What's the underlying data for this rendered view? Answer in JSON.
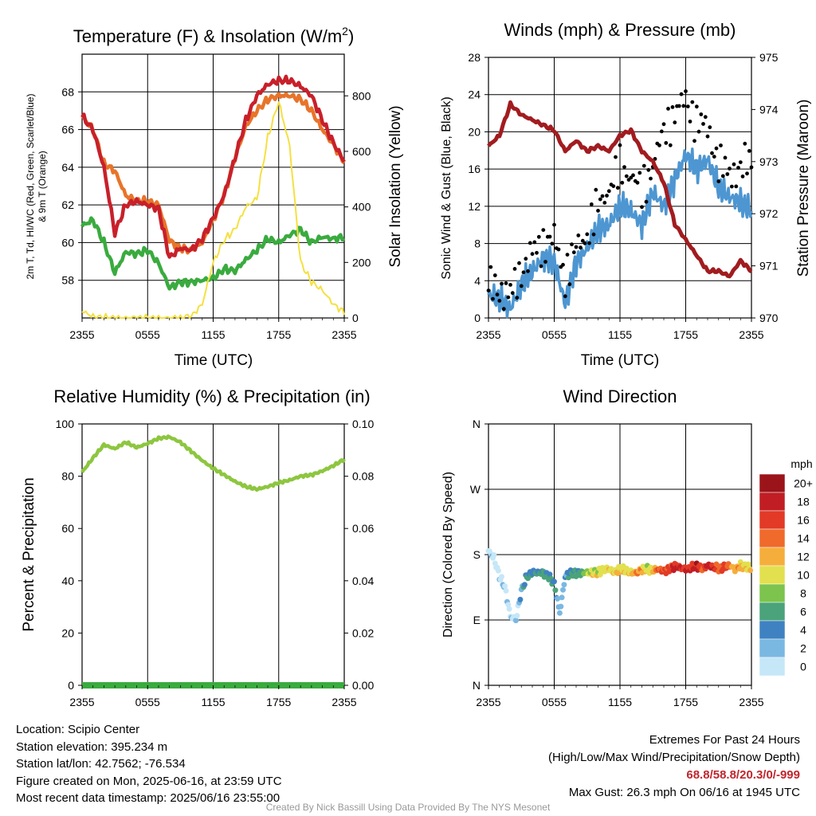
{
  "chart_data": [
    {
      "id": "temp",
      "type": "line",
      "title": "Temperature (F) & Insolation (W/m²)",
      "title_main": "Temperature (F) & Insolation (W/m",
      "title_sup": "2",
      "title_end": ")",
      "xlabel": "Time (UTC)",
      "ylabel_line1": "2m T, Td, HI/WC (Red, Green, Scarlet/Blue)",
      "ylabel_line2": "& 9m T (Orange)",
      "ylabel_right": "Solar Insolation (Yellow)",
      "x_ticks": [
        "2355",
        "0555",
        "1155",
        "1755",
        "2355"
      ],
      "y_ticks": [
        "58",
        "60",
        "62",
        "64",
        "66",
        "68"
      ],
      "y_right_ticks": [
        "0",
        "200",
        "400",
        "600",
        "800"
      ],
      "ylim": [
        56,
        70
      ],
      "y_right_lim": [
        0,
        950
      ],
      "x_hours": [
        0,
        1,
        2,
        3,
        4,
        5,
        6,
        7,
        8,
        9,
        10,
        11,
        12,
        13,
        14,
        15,
        16,
        17,
        18,
        19,
        20,
        21,
        22,
        23,
        24
      ],
      "series": [
        {
          "color": "#e8742a",
          "axis": "left",
          "values": [
            66.7,
            66.0,
            64.2,
            63.8,
            62.5,
            62.2,
            62.2,
            62.0,
            60.1,
            59.7,
            59.6,
            60.0,
            61.2,
            62.5,
            64.5,
            66.2,
            67.0,
            67.6,
            67.8,
            67.8,
            67.6,
            67.0,
            66.0,
            65.2,
            64.3
          ]
        },
        {
          "color": "#c8202a",
          "axis": "left",
          "values": [
            66.7,
            66.0,
            64.0,
            60.5,
            62.0,
            62.2,
            62.0,
            61.8,
            59.2,
            59.7,
            59.6,
            60.2,
            61.3,
            62.5,
            64.5,
            66.5,
            67.8,
            68.4,
            68.6,
            68.6,
            68.3,
            67.8,
            66.5,
            65.3,
            64.3
          ]
        },
        {
          "color": "#3aab3f",
          "axis": "left",
          "values": [
            60.9,
            61.2,
            60.0,
            58.4,
            59.5,
            59.4,
            59.6,
            58.9,
            57.6,
            57.9,
            57.9,
            58.0,
            58.1,
            58.6,
            58.5,
            59.1,
            59.6,
            60.2,
            60.0,
            60.4,
            60.7,
            60.0,
            60.3,
            60.2,
            60.3
          ]
        },
        {
          "color": "#f5e042",
          "axis": "right",
          "values": [
            25,
            5,
            0,
            0,
            0,
            0,
            0,
            0,
            0,
            0,
            5,
            50,
            200,
            280,
            320,
            400,
            430,
            650,
            780,
            620,
            200,
            130,
            100,
            50,
            20
          ]
        }
      ]
    },
    {
      "id": "wind",
      "type": "scatter",
      "title": "Winds (mph) & Pressure (mb)",
      "xlabel": "Time (UTC)",
      "ylabel": "Sonic Wind & Gust (Blue, Black)",
      "ylabel_right": "Station Pressure (Maroon)",
      "x_ticks": [
        "2355",
        "0555",
        "1155",
        "1755",
        "2355"
      ],
      "y_ticks": [
        "0",
        "4",
        "8",
        "12",
        "16",
        "20",
        "24",
        "28"
      ],
      "y_right_ticks": [
        "970",
        "971",
        "972",
        "973",
        "974",
        "975"
      ],
      "ylim": [
        0,
        28
      ],
      "y_right_lim": [
        970,
        975
      ],
      "x_hours": [
        0,
        1,
        2,
        3,
        4,
        5,
        6,
        7,
        8,
        9,
        10,
        11,
        12,
        13,
        14,
        15,
        16,
        17,
        18,
        19,
        20,
        21,
        22,
        23,
        24
      ],
      "series": [
        {
          "name": "Wind",
          "color": "#4d96d1",
          "axis": "left",
          "values": [
            2.5,
            2.0,
            1.0,
            3.5,
            5.0,
            6.5,
            6.0,
            1.5,
            6.0,
            7.5,
            9.5,
            10.0,
            12.0,
            11.5,
            10.0,
            13.5,
            12.0,
            15.0,
            17.5,
            16.0,
            17.0,
            14.0,
            13.0,
            12.5,
            11.5
          ]
        },
        {
          "name": "Gust",
          "color": "#000000",
          "axis": "left",
          "values": [
            3.5,
            3.0,
            2.5,
            5.0,
            7.0,
            8.0,
            8.5,
            4.5,
            7.5,
            9.0,
            12.0,
            14.0,
            16.0,
            15.5,
            13.5,
            16.5,
            20.0,
            22.0,
            23.5,
            21.0,
            20.5,
            16.5,
            15.5,
            16.0,
            17.0
          ]
        },
        {
          "name": "Pressure",
          "color": "#a11c1f",
          "axis": "right",
          "values": [
            973.3,
            973.5,
            974.1,
            973.9,
            973.8,
            973.7,
            973.6,
            973.2,
            973.4,
            973.2,
            973.3,
            973.2,
            973.5,
            973.6,
            973.2,
            973.0,
            972.6,
            971.8,
            971.5,
            971.2,
            970.9,
            970.9,
            970.8,
            971.1,
            970.9
          ]
        }
      ]
    },
    {
      "id": "rh",
      "type": "line",
      "title": "Relative Humidity (%) & Precipitation (in)",
      "ylabel": "Percent & Precipitation",
      "x_ticks": [
        "2355",
        "0555",
        "1155",
        "1755",
        "2355"
      ],
      "y_ticks": [
        "0",
        "20",
        "40",
        "60",
        "80",
        "100"
      ],
      "y_right_ticks": [
        "0.00",
        "0.02",
        "0.04",
        "0.06",
        "0.08",
        "0.10"
      ],
      "ylim": [
        0,
        100
      ],
      "y_right_lim": [
        0,
        0.1
      ],
      "x_hours": [
        0,
        1,
        2,
        3,
        4,
        5,
        6,
        7,
        8,
        9,
        10,
        11,
        12,
        13,
        14,
        15,
        16,
        17,
        18,
        19,
        20,
        21,
        22,
        23,
        24
      ],
      "series": [
        {
          "name": "RH",
          "color": "#8dc63f",
          "axis": "left",
          "values": [
            81.5,
            87.0,
            92.0,
            90.5,
            93.0,
            91.0,
            92.5,
            94.5,
            95.0,
            93.0,
            89.5,
            86.0,
            83.0,
            80.5,
            78.0,
            76.0,
            75.0,
            76.0,
            77.5,
            78.5,
            80.0,
            80.5,
            82.0,
            84.0,
            86.5
          ]
        },
        {
          "name": "Precipitation",
          "color": "#3aab3f",
          "axis": "right",
          "values": [
            0,
            0,
            0,
            0,
            0,
            0,
            0,
            0,
            0,
            0,
            0,
            0,
            0,
            0,
            0,
            0,
            0,
            0,
            0,
            0,
            0,
            0,
            0,
            0,
            0
          ]
        }
      ]
    },
    {
      "id": "dir",
      "type": "scatter",
      "title": "Wind Direction",
      "ylabel": "Direction (Colored By Speed)",
      "x_ticks": [
        "2355",
        "0555",
        "1155",
        "1755",
        "2355"
      ],
      "y_ticks": [
        "N",
        "E",
        "S",
        "W",
        "N"
      ],
      "ylim": [
        0,
        360
      ],
      "colorbar_title": "mph",
      "colorbar_labels": [
        "0",
        "2",
        "4",
        "6",
        "8",
        "10",
        "12",
        "14",
        "16",
        "18",
        "20+"
      ],
      "colorbar_colors": [
        "#c6e7f7",
        "#7ab8e2",
        "#3f82c2",
        "#4aa37a",
        "#7cc44d",
        "#e2e04f",
        "#f5ae3b",
        "#ef6a2b",
        "#e23a27",
        "#c11d24",
        "#9b1419"
      ],
      "x_hours": [
        0,
        0.5,
        1,
        1.5,
        2,
        2.5,
        3,
        3.5,
        4,
        4.5,
        5,
        5.5,
        6,
        6.5,
        7,
        7.5,
        8,
        8.5,
        9,
        9.5,
        10,
        10.5,
        11,
        11.5,
        12,
        12.5,
        13,
        13.5,
        14,
        14.5,
        15,
        15.5,
        16,
        16.5,
        17,
        17.5,
        18,
        18.5,
        19,
        19.5,
        20,
        20.5,
        21,
        21.5,
        22,
        22.5,
        23,
        23.5,
        24
      ],
      "directions": [
        185,
        175,
        150,
        135,
        95,
        90,
        130,
        150,
        155,
        155,
        155,
        150,
        140,
        100,
        150,
        155,
        155,
        155,
        155,
        155,
        155,
        160,
        160,
        155,
        160,
        158,
        155,
        155,
        160,
        160,
        158,
        160,
        158,
        160,
        165,
        162,
        160,
        162,
        165,
        160,
        165,
        163,
        160,
        162,
        165,
        160,
        165,
        163,
        160
      ],
      "speeds": [
        2,
        1,
        1,
        2,
        2,
        1,
        4,
        6,
        6,
        6,
        7,
        6,
        6,
        2,
        4,
        6,
        6,
        7,
        10,
        11,
        11,
        11,
        12,
        12,
        12,
        11,
        12,
        14,
        13,
        10,
        12,
        16,
        16,
        17,
        18,
        18,
        18,
        17,
        20,
        15,
        20,
        18,
        15,
        17,
        14,
        13,
        13,
        12,
        12
      ]
    }
  ],
  "footer": {
    "location": "Location: Scipio Center",
    "elevation": "Station elevation: 395.234 m",
    "latlon": "Station lat/lon: 42.7562; -76.534",
    "created": "Figure created on Mon, 2025-06-16, at 23:59 UTC",
    "recent": "Most recent data timestamp: 2025/06/16 23:55:00",
    "extremes_title": "Extremes For Past 24 Hours",
    "extremes_sub": "(High/Low/Max Wind/Precipitation/Snow Depth)",
    "extremes_values": "68.8/58.8/20.3/0/-999",
    "max_gust": "Max Gust: 26.3 mph On 06/16 at 1945 UTC",
    "credit": "Created By Nick Bassill Using Data Provided By The NYS Mesonet"
  }
}
